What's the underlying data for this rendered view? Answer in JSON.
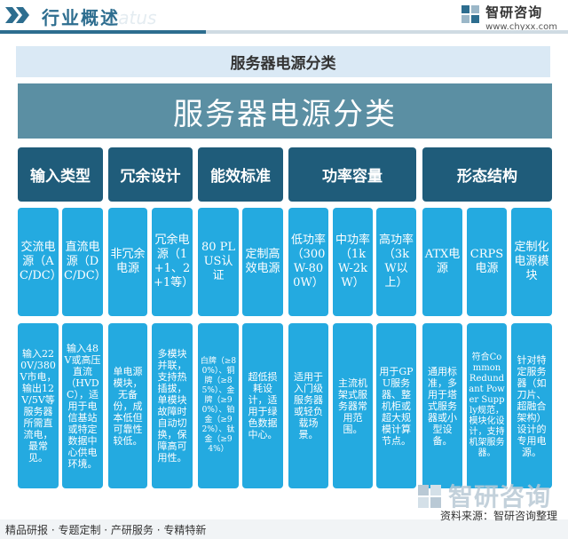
{
  "header": {
    "title": "行业概述",
    "watermark": "status",
    "brand_name": "智研咨询",
    "brand_url": "www.chyxx.com"
  },
  "diagram": {
    "subtitle": "服务器电源分类",
    "main_title": "服务器电源分类",
    "categories": [
      "输入类型",
      "冗余设计",
      "能效标准",
      "功率容量",
      "形态结构"
    ],
    "subcategories": [
      "交流电源（AC/DC）",
      "直流电源（DC/DC）",
      "非冗余电源",
      "冗余电源（1+1、2+1等）",
      "80 PLUS认证",
      "定制高效电源",
      "低功率（300W-800W）",
      "中功率（1kW-2kW）",
      "高功率（3kW以上）",
      "ATX电源",
      "CRPS电源",
      "定制化电源模块"
    ],
    "descriptions": [
      "输入220V/380V市电，输出12V/5V等服务器所需直流电，最常见。",
      "输入48V或高压直流（HVDC），适用于电信基站或特定数据中心供电环境。",
      "单电源模块，无备份，成本低但可靠性较低。",
      "多模块并联，支持热插拔，单模块故障时自动切换，保障高可用性。",
      "白牌（≥80%）、铜牌（≥85%）、金牌（≥90%）、铂金（≥92%）、钛金（≥94%）",
      "超低损耗设计，适用于绿色数据中心。",
      "适用于入门级服务器或轻负载场景。",
      "主流机架式服务器常用范围。",
      "用于GPU服务器、整机柜或超大规模计算节点。",
      "通用标准，多用于塔式服务器或小型设备。",
      "符合Common Redundant Power Supply规范，模块化设计，支持机架服务器。",
      "针对特定服务器（如刀片、超融合架构）设计的专用电源。"
    ]
  },
  "footer": {
    "left": "精品研报 · 专题定制 · 产研服务 · 专精特新",
    "source": "资料来源：智研咨询整理",
    "watermark_text": "智研咨询"
  },
  "colors": {
    "category_bg": "#1f5c7a",
    "box_bg": "#24aae0",
    "title_bg": "#5b8fa3",
    "subtitle_bg": "#dae9f5"
  }
}
